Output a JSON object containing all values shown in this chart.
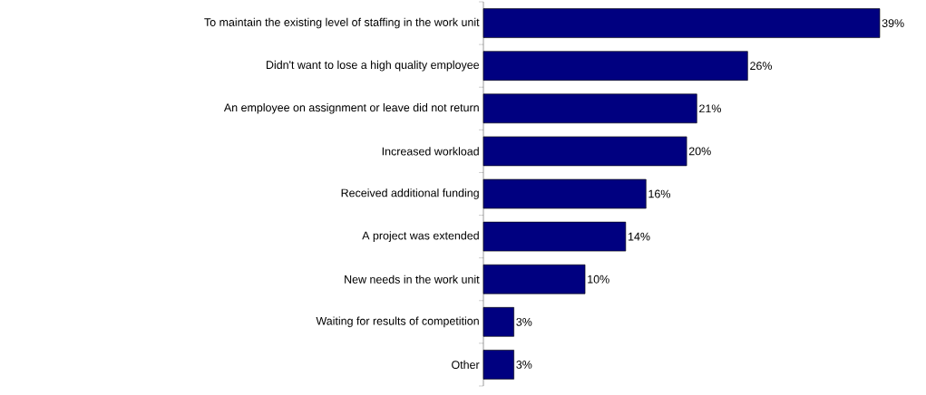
{
  "chart_data": {
    "type": "bar",
    "orientation": "horizontal",
    "categories": [
      "To maintain the existing level of staffing in the work unit",
      "Didn't want to lose a high quality employee",
      "An employee on assignment or leave did not return",
      "Increased workload",
      "Received additional funding",
      "A project was extended",
      "New needs in the work unit",
      "Waiting for results of competition",
      "Other"
    ],
    "values": [
      39,
      26,
      21,
      20,
      16,
      14,
      10,
      3,
      3
    ],
    "value_labels": [
      "39%",
      "26%",
      "21%",
      "20%",
      "16%",
      "14%",
      "10%",
      "3%",
      "3%"
    ],
    "color": "#000080"
  }
}
